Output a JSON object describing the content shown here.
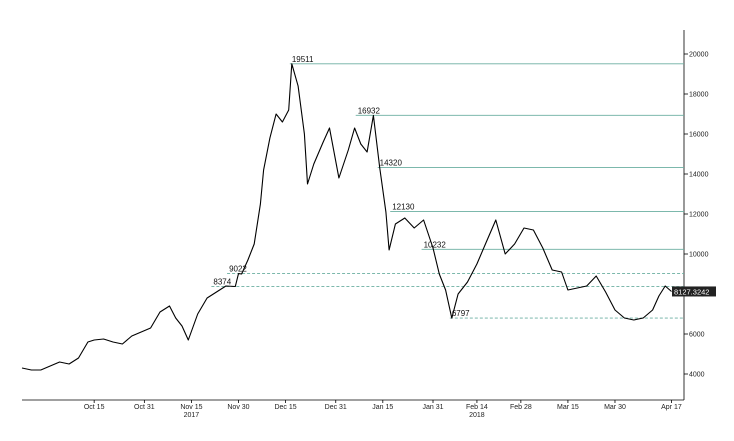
{
  "chart_data": {
    "type": "line",
    "title": "",
    "xlabel": "",
    "ylabel": "",
    "ylim": [
      2700,
      21200
    ],
    "y_axis_side": "right",
    "y_ticks": [
      4000,
      6000,
      8000,
      10000,
      12000,
      14000,
      16000,
      18000,
      20000
    ],
    "y_tick_labels": [
      "4000",
      "6000",
      "8000",
      "10000",
      "12000",
      "14000",
      "16000",
      "18000",
      "20000"
    ],
    "x_ticks": [
      {
        "date": "2017-10-15",
        "label": "Oct 15"
      },
      {
        "date": "2017-10-31",
        "label": "Oct 31"
      },
      {
        "date": "2017-11-15",
        "label": "Nov 15"
      },
      {
        "date": "2017-11-30",
        "label": "Nov 30"
      },
      {
        "date": "2017-12-15",
        "label": "Dec 15"
      },
      {
        "date": "2017-12-31",
        "label": "Dec 31"
      },
      {
        "date": "2018-01-15",
        "label": "Jan 15"
      },
      {
        "date": "2018-01-31",
        "label": "Jan 31"
      },
      {
        "date": "2018-02-14",
        "label": "Feb 14"
      },
      {
        "date": "2018-02-28",
        "label": "Feb 28"
      },
      {
        "date": "2018-03-15",
        "label": "Mar 15"
      },
      {
        "date": "2018-03-30",
        "label": "Mar 30"
      },
      {
        "date": "2018-04-17",
        "label": "Apr 17"
      }
    ],
    "year_labels": [
      {
        "date": "2017-11-15",
        "label": "2017"
      },
      {
        "date": "2018-02-14",
        "label": "2018"
      }
    ],
    "levels": [
      {
        "value": 19511,
        "label": "19511",
        "style": "solid",
        "label_date": "2017-12-17"
      },
      {
        "value": 16932,
        "label": "16932",
        "style": "solid",
        "label_date": "2018-01-07"
      },
      {
        "value": 14320,
        "label": "14320",
        "style": "solid",
        "label_date": "2018-01-14"
      },
      {
        "value": 12130,
        "label": "12130",
        "style": "solid",
        "label_date": "2018-01-18"
      },
      {
        "value": 10232,
        "label": "10232",
        "style": "solid",
        "label_date": "2018-01-28"
      },
      {
        "value": 9022,
        "label": "9022",
        "style": "dashed",
        "label_date": "2017-11-27"
      },
      {
        "value": 8374,
        "label": "8374",
        "style": "dashed",
        "label_date": "2017-11-22"
      },
      {
        "value": 6797,
        "label": "6797",
        "style": "dashed",
        "label_date": "2018-02-06"
      }
    ],
    "current_value": "8127.3242",
    "series": [
      {
        "color": "#000000",
        "x": [
          "2017-09-22",
          "2017-09-25",
          "2017-09-28",
          "2017-10-01",
          "2017-10-04",
          "2017-10-07",
          "2017-10-10",
          "2017-10-13",
          "2017-10-15",
          "2017-10-18",
          "2017-10-21",
          "2017-10-24",
          "2017-10-27",
          "2017-10-30",
          "2017-11-02",
          "2017-11-05",
          "2017-11-08",
          "2017-11-10",
          "2017-11-12",
          "2017-11-14",
          "2017-11-17",
          "2017-11-20",
          "2017-11-23",
          "2017-11-26",
          "2017-11-29",
          "2017-11-30",
          "2017-12-01",
          "2017-12-03",
          "2017-12-05",
          "2017-12-07",
          "2017-12-08",
          "2017-12-10",
          "2017-12-12",
          "2017-12-14",
          "2017-12-16",
          "2017-12-17",
          "2017-12-19",
          "2017-12-21",
          "2017-12-22",
          "2017-12-24",
          "2017-12-27",
          "2017-12-29",
          "2018-01-01",
          "2018-01-04",
          "2018-01-06",
          "2018-01-08",
          "2018-01-10",
          "2018-01-12",
          "2018-01-14",
          "2018-01-16",
          "2018-01-17",
          "2018-01-19",
          "2018-01-22",
          "2018-01-25",
          "2018-01-28",
          "2018-01-31",
          "2018-02-02",
          "2018-02-04",
          "2018-02-06",
          "2018-02-08",
          "2018-02-11",
          "2018-02-14",
          "2018-02-17",
          "2018-02-20",
          "2018-02-23",
          "2018-02-26",
          "2018-03-01",
          "2018-03-04",
          "2018-03-07",
          "2018-03-10",
          "2018-03-13",
          "2018-03-15",
          "2018-03-18",
          "2018-03-21",
          "2018-03-24",
          "2018-03-27",
          "2018-03-30",
          "2018-04-02",
          "2018-04-05",
          "2018-04-08",
          "2018-04-11",
          "2018-04-13",
          "2018-04-15",
          "2018-04-17"
        ],
        "values": [
          4300,
          4200,
          4200,
          4400,
          4600,
          4500,
          4800,
          5600,
          5700,
          5750,
          5600,
          5500,
          5900,
          6100,
          6300,
          7100,
          7400,
          6800,
          6400,
          5700,
          7000,
          7800,
          8100,
          8400,
          8374,
          9022,
          9000,
          9700,
          10500,
          12500,
          14200,
          15800,
          17000,
          16600,
          17200,
          19511,
          18400,
          16000,
          13500,
          14500,
          15600,
          16300,
          13800,
          15200,
          16300,
          15500,
          15100,
          16932,
          14320,
          12100,
          10200,
          11500,
          11800,
          11300,
          11700,
          10300,
          9000,
          8200,
          6797,
          8000,
          8600,
          9500,
          10600,
          11700,
          10000,
          10500,
          11300,
          11200,
          10300,
          9200,
          9100,
          8200,
          8300,
          8400,
          8900,
          8100,
          7200,
          6800,
          6700,
          6800,
          7200,
          7900,
          8400,
          8127
        ]
      }
    ]
  }
}
